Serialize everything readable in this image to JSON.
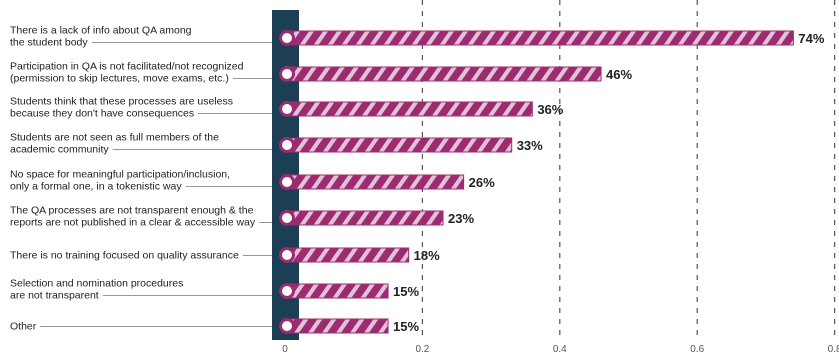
{
  "chart_data": {
    "type": "bar",
    "orientation": "horizontal",
    "categories": [
      [
        "There is a lack of info about QA among",
        "the student body"
      ],
      [
        "Participation in QA is not facilitated/not recognized",
        "(permission to skip lectures, move exams, etc.)"
      ],
      [
        "Students think that these processes are useless",
        "because they don't have consequences"
      ],
      [
        "Students are not seen as full members of the",
        "academic community"
      ],
      [
        "No space for meaningful participation/inclusion,",
        "only a formal one, in a tokenistic way"
      ],
      [
        "The QA processes are not transparent enough & the",
        "reports are not published in a clear & accessible way"
      ],
      [
        "There is no training focused on quality assurance"
      ],
      [
        "Selection and nomination procedures",
        "are not transparent"
      ],
      [
        "Other"
      ]
    ],
    "values": [
      0.74,
      0.46,
      0.36,
      0.33,
      0.26,
      0.23,
      0.18,
      0.15,
      0.15
    ],
    "data_labels": [
      "74%",
      "46%",
      "36%",
      "33%",
      "26%",
      "23%",
      "18%",
      "15%",
      "15%"
    ],
    "x_ticks": [
      "0",
      "0.2",
      "0.4",
      "0.6",
      "0.8"
    ],
    "xlim": [
      0,
      0.8
    ],
    "grid": "vertical dashed",
    "colors": {
      "bar": "#9c2b72",
      "stripe": "#e2c2d7",
      "axis_band": "#1c3f55",
      "marker_fill": "#ffffff",
      "grid": "#555555",
      "leader": "#777777"
    }
  }
}
